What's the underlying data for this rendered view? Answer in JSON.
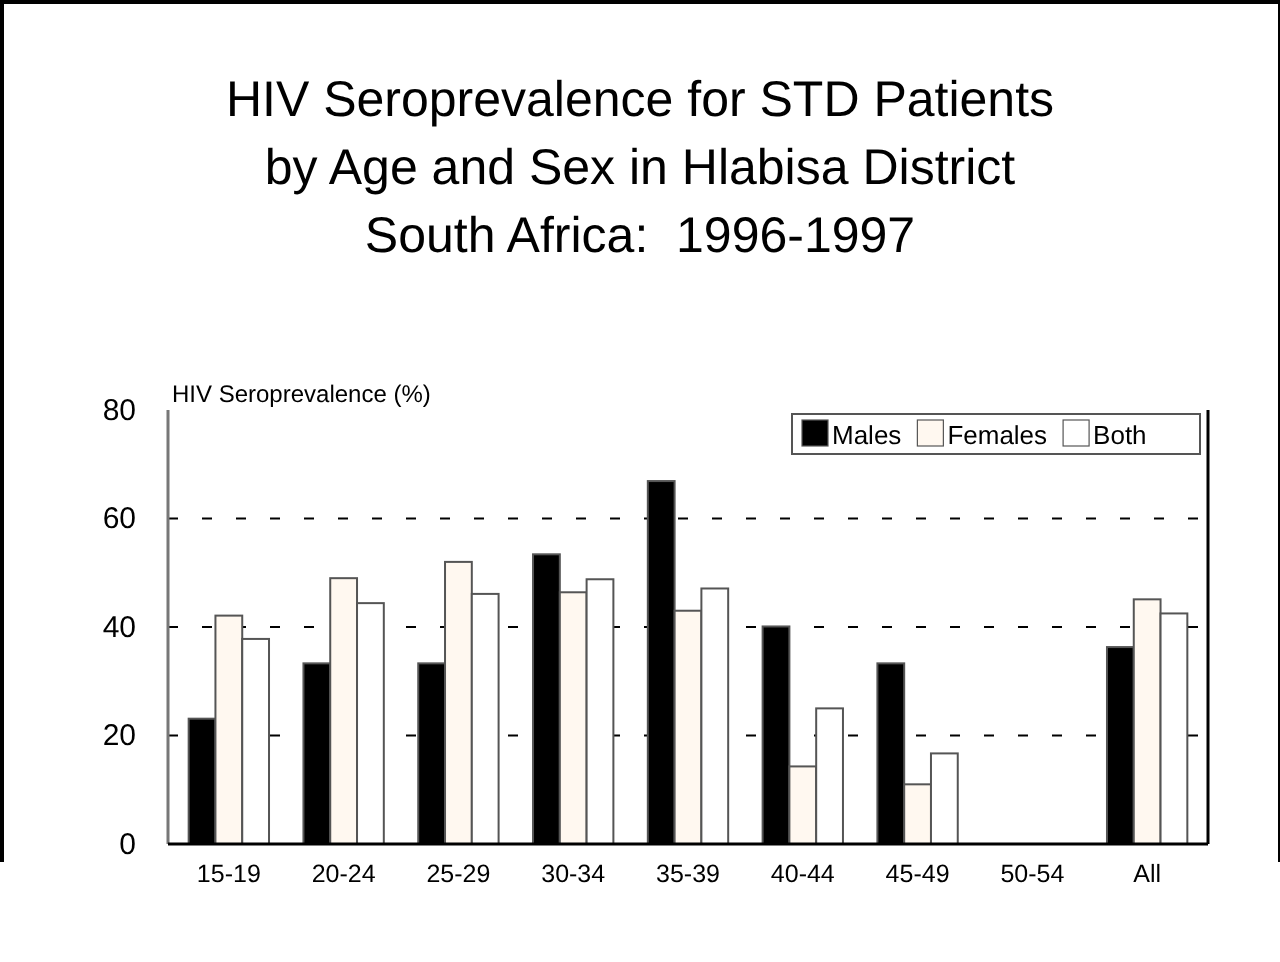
{
  "chart_data": {
    "type": "bar",
    "title": "HIV Seroprevalence for STD Patients\nby Age and Sex in Hlabisa District\nSouth Africa:  1996-1997",
    "ylabel": "HIV Seroprevalence (%)",
    "categories": [
      "15-19",
      "20-24",
      "25-29",
      "30-34",
      "35-39",
      "40-44",
      "45-49",
      "50-54",
      "All"
    ],
    "series": [
      {
        "name": "Males",
        "color": "#000000",
        "values": [
          23.1,
          33.3,
          33.3,
          53.4,
          66.9,
          40.1,
          33.3,
          0,
          36.3
        ]
      },
      {
        "name": "Females",
        "color": "#fff8f0",
        "values": [
          42.1,
          49.0,
          52.0,
          46.4,
          43.0,
          14.3,
          11.0,
          0,
          45.1
        ]
      },
      {
        "name": "Both",
        "color": "#ffffff",
        "values": [
          37.8,
          44.4,
          46.1,
          48.8,
          47.1,
          25.0,
          16.7,
          0,
          42.5
        ]
      }
    ],
    "ylim": [
      0,
      80
    ],
    "yticks": [
      0,
      20,
      40,
      60,
      80
    ],
    "grid": "y",
    "legend": "top right"
  }
}
